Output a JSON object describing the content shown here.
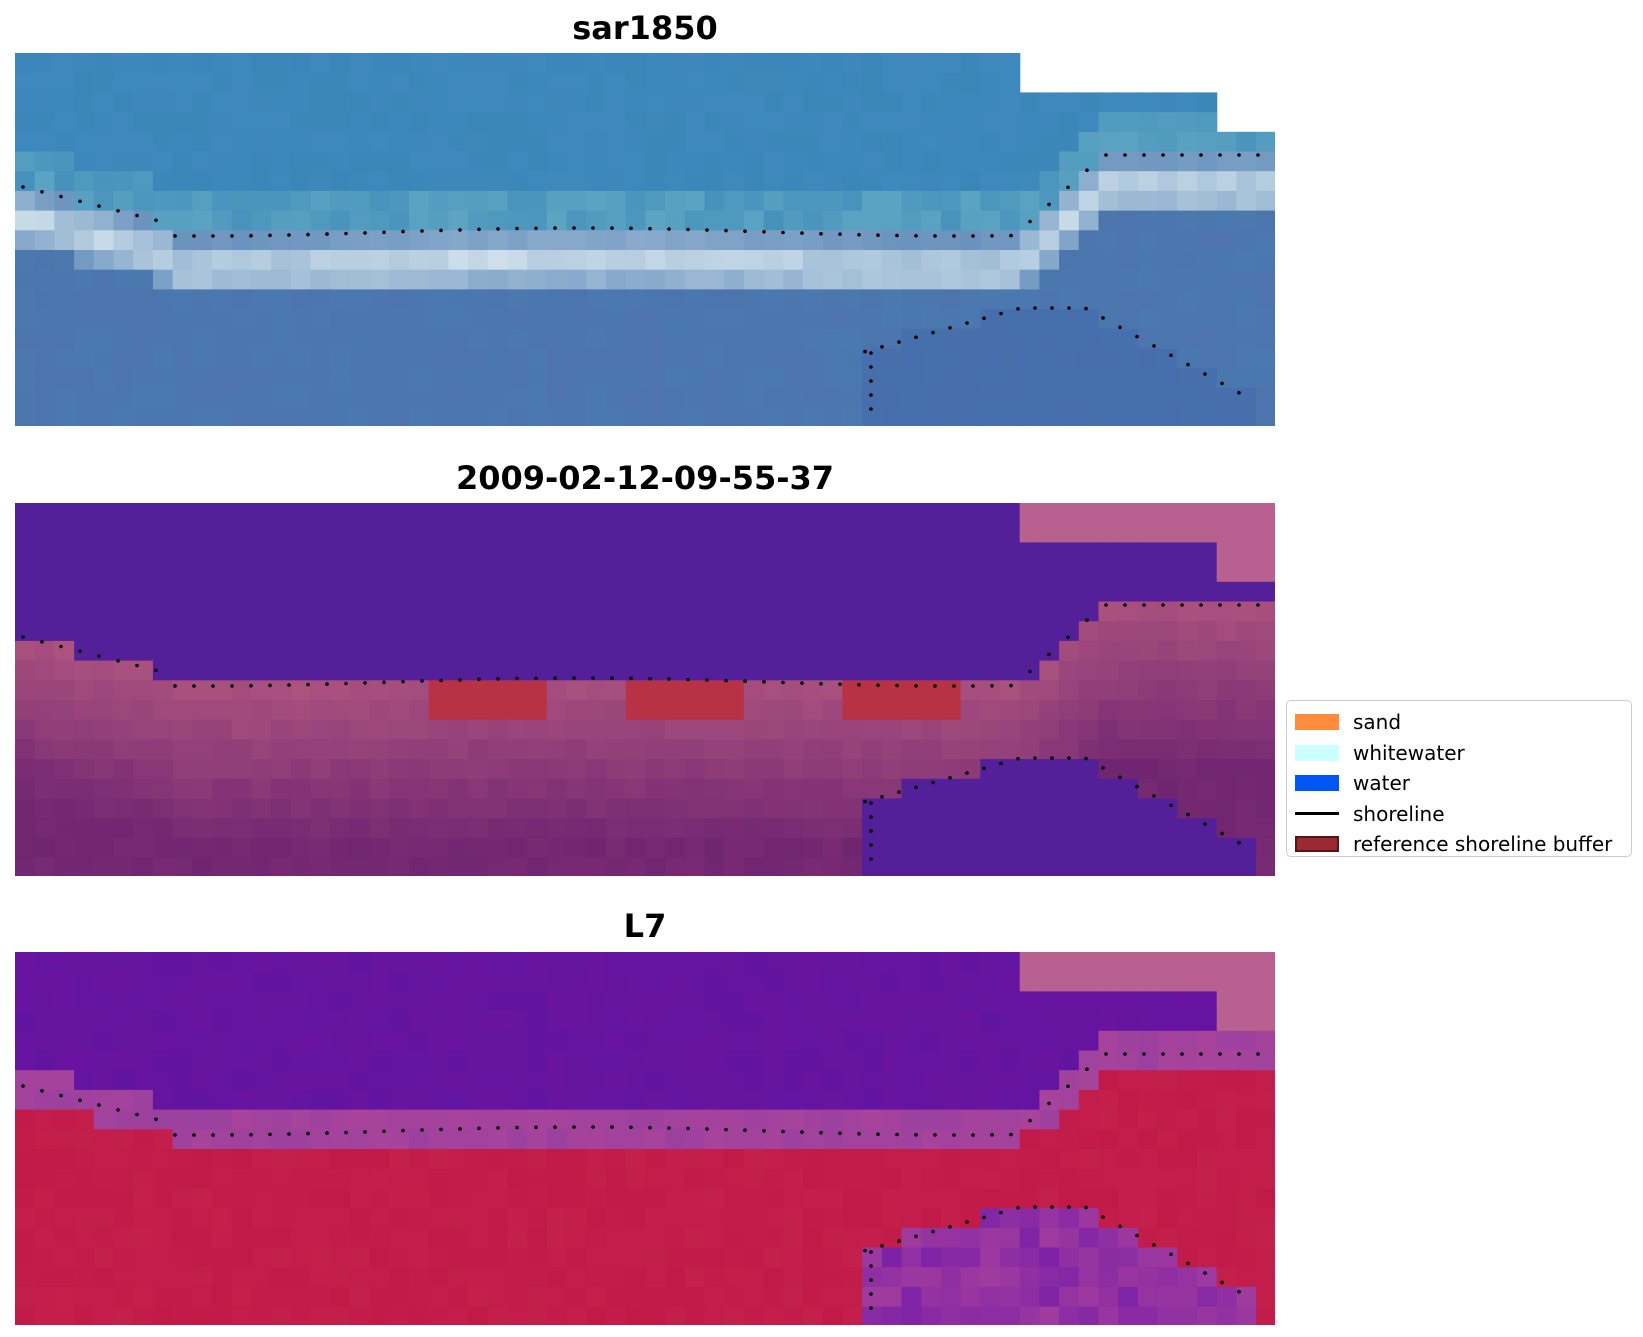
{
  "panels": [
    {
      "title": "sar1850",
      "colors": {
        "ocean": "#3a86b8",
        "surf": "#d6e6ee",
        "land": "#4a7ab0",
        "notch": "#ffffff"
      }
    },
    {
      "title": "2009-02-12-09-55-37",
      "colors": {
        "ocean": "#53209a",
        "land_top": "#a8507e",
        "land_bottom": "#742872",
        "buffer": "#b83246",
        "corner": "#b86090"
      }
    },
    {
      "title": "L7",
      "colors": {
        "ocean": "#6a14a0",
        "band": "#9a40a0",
        "land": "#c01848",
        "inlet": "#7a20a8",
        "corner": "#b86090"
      }
    }
  ],
  "legend": {
    "items": [
      {
        "label": "sand",
        "color": "#ff8c3c",
        "kind": "patch"
      },
      {
        "label": "whitewater",
        "color": "#ccffff",
        "kind": "patch"
      },
      {
        "label": "water",
        "color": "#0055f5",
        "kind": "patch"
      },
      {
        "label": "shoreline",
        "color": "#000000",
        "kind": "line"
      },
      {
        "label": "reference shoreline buffer",
        "color": "#9a2a32",
        "kind": "patch"
      }
    ]
  }
}
